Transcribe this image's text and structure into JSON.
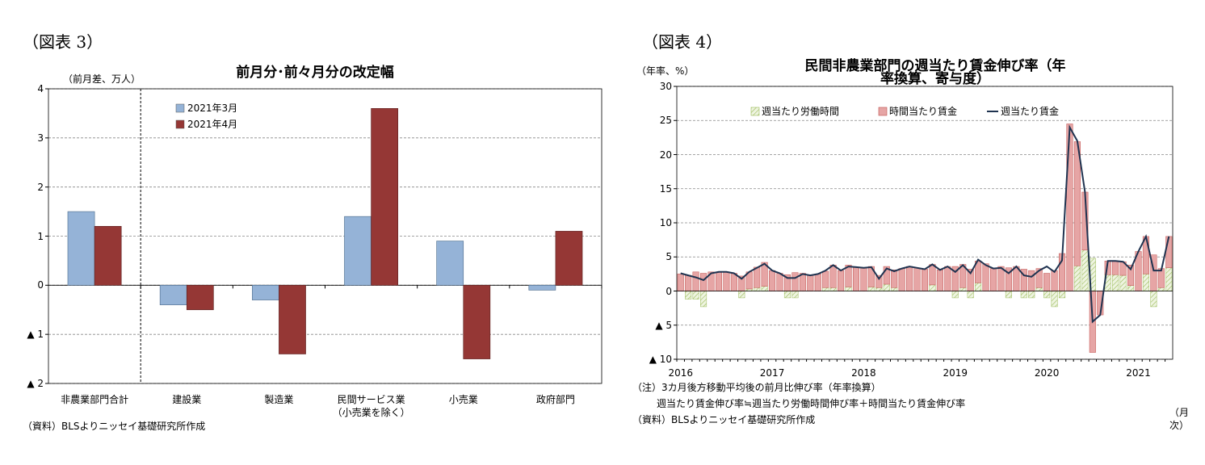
{
  "chart_data": [
    {
      "type": "bar",
      "header": "（図表 3）",
      "title": "前月分･前々月分の改定幅",
      "y_label": "（前月差、万人）",
      "source": "（資料）BLSよりニッセイ基礎研究所作成",
      "categories": [
        "非農業部門合計",
        "建設業",
        "製造業",
        "民間サービス業\n（小売業を除く）",
        "小売業",
        "政府部門"
      ],
      "series": [
        {
          "name": "2021年3月",
          "color": "#95b3d7",
          "values": [
            1.5,
            -0.4,
            -0.3,
            1.4,
            0.9,
            -0.1
          ]
        },
        {
          "name": "2021年4月",
          "color": "#953735",
          "values": [
            1.2,
            -0.5,
            -1.4,
            3.6,
            -1.5,
            1.1
          ]
        }
      ],
      "ylim": [
        -2,
        4
      ],
      "yticks": [
        4,
        3,
        2,
        1,
        0,
        {
          "value": -1,
          "label": "▲ 1"
        },
        {
          "value": -2,
          "label": "▲ 2"
        }
      ],
      "grid": true,
      "legend": "upper left"
    },
    {
      "type": "bar",
      "stacked": true,
      "header": "（図表 4）",
      "title": "民間非農業部門の週当たり賃金伸び率（年率換算、寄与度）",
      "y_label": "（年率、%）",
      "notes": [
        "（注）3カ月後方移動平均後の前月比伸び率（年率換算）",
        "週当たり賃金伸び率≒週当たり労働時間伸び率＋時間当たり賃金伸び率",
        "（資料）BLSよりニッセイ基礎研究所作成"
      ],
      "x_label": "（月次）",
      "categories": [
        "2016",
        null,
        null,
        null,
        null,
        null,
        null,
        null,
        null,
        null,
        null,
        null,
        "2017",
        null,
        null,
        null,
        null,
        null,
        null,
        null,
        null,
        null,
        null,
        null,
        "2018",
        null,
        null,
        null,
        null,
        null,
        null,
        null,
        null,
        null,
        null,
        null,
        "2019",
        null,
        null,
        null,
        null,
        null,
        null,
        null,
        null,
        null,
        null,
        null,
        "2020",
        null,
        null,
        null,
        null,
        null,
        null,
        null,
        null,
        null,
        null,
        null,
        "2021",
        null,
        null,
        null,
        null
      ],
      "series": [
        {
          "name": "週当たり労働時間",
          "type": "bar",
          "color": "#d7e4bd",
          "hatch": true,
          "values": [
            0,
            -1.2,
            -1.2,
            -2.3,
            0,
            0,
            0,
            0,
            -1.0,
            0.3,
            0.5,
            0.7,
            0,
            0,
            -1.0,
            -1.0,
            0,
            0,
            0,
            0.5,
            0.5,
            0,
            0.6,
            0,
            0,
            0.6,
            0.5,
            1.0,
            0.5,
            0,
            0,
            0,
            0,
            0.9,
            0,
            0,
            -1.0,
            0.5,
            -1.0,
            1.2,
            0,
            0,
            0,
            -1.0,
            0,
            -1.0,
            -1.0,
            0.5,
            -1.0,
            -2.3,
            -1.0,
            0,
            3.7,
            6.0,
            4.8,
            0,
            2.4,
            2.4,
            2.3,
            0.8,
            0,
            2.5,
            -2.3,
            0.5,
            3.4
          ]
        },
        {
          "name": "時間当たり賃金",
          "type": "bar",
          "color": "#e6a5a5",
          "values": [
            2.5,
            2.3,
            2.8,
            2.6,
            2.8,
            2.8,
            2.8,
            2.6,
            2.2,
            2.5,
            3.0,
            3.5,
            3.0,
            2.6,
            2.4,
            2.7,
            2.6,
            2.3,
            2.5,
            2.4,
            3.3,
            3.0,
            3.2,
            3.5,
            3.4,
            3.0,
            1.8,
            2.6,
            2.6,
            3.3,
            3.6,
            3.4,
            3.2,
            3.0,
            3.1,
            3.6,
            3.6,
            3.4,
            3.2,
            3.2,
            4.0,
            3.3,
            3.6,
            3.4,
            3.6,
            3.2,
            3.0,
            2.8,
            2.6,
            3.0,
            5.5,
            24.5,
            18.2,
            8.5,
            -9.0,
            -3.5,
            2.0,
            2.0,
            2.0,
            3.0,
            5.8,
            5.5,
            5.3,
            2.8,
            4.6
          ]
        },
        {
          "name": "週当たり賃金",
          "type": "line",
          "color": "#1f3350",
          "values": [
            2.6,
            2.3,
            2.0,
            1.6,
            2.6,
            2.8,
            2.8,
            2.6,
            1.8,
            2.8,
            3.4,
            4.0,
            3.0,
            2.6,
            1.9,
            1.9,
            2.5,
            2.3,
            2.5,
            3.0,
            3.8,
            3.0,
            3.6,
            3.5,
            3.4,
            3.5,
            1.8,
            3.3,
            2.9,
            3.3,
            3.6,
            3.4,
            3.2,
            3.9,
            3.1,
            3.6,
            2.8,
            3.8,
            2.6,
            4.6,
            3.8,
            3.3,
            3.4,
            2.6,
            3.6,
            2.3,
            2.1,
            3.0,
            3.6,
            2.8,
            4.5,
            24.0,
            22.0,
            14.5,
            -4.5,
            -3.5,
            4.4,
            4.4,
            4.3,
            3.2,
            5.8,
            8.0,
            3.0,
            3.0,
            8.0
          ]
        }
      ],
      "ylim": [
        -10,
        30
      ],
      "yticks": [
        30,
        25,
        20,
        15,
        10,
        5,
        0,
        {
          "value": -5,
          "label": "▲ 5"
        },
        {
          "value": -10,
          "label": "▲ 10"
        }
      ],
      "grid": true,
      "legend": "upper center"
    }
  ]
}
